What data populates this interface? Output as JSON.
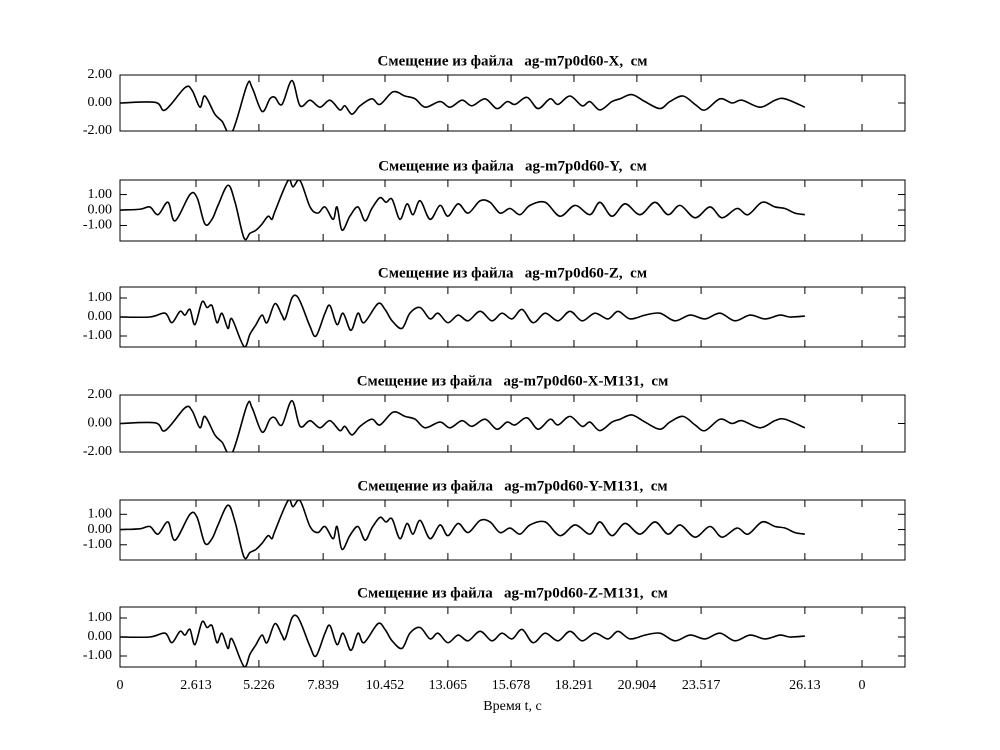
{
  "chart_data": [
    {
      "type": "line",
      "title": "Смещение из файла   ag-m7p0d60-X,  см",
      "color": "#000000",
      "xlim": [
        0,
        29.95
      ],
      "ylim": [
        -2,
        2
      ],
      "yticks": [
        {
          "value": -2,
          "label": "-2.00"
        },
        {
          "value": 0,
          "label": "0.00"
        },
        {
          "value": 2,
          "label": "2.00"
        }
      ],
      "x": [
        0,
        1.34,
        1.72,
        2.48,
        2.75,
        3.05,
        3.24,
        3.62,
        3.89,
        4.27,
        4.85,
        5.04,
        5.42,
        5.72,
        5.91,
        6.18,
        6.56,
        6.87,
        7.25,
        7.63,
        8.01,
        8.39,
        8.58,
        8.85,
        9.16,
        9.61,
        9.92,
        10.42,
        10.87,
        11.26,
        11.64,
        12.21,
        12.59,
        13.05,
        13.43,
        13.93,
        14.38,
        14.77,
        15.07,
        15.53,
        15.95,
        16.41,
        16.71,
        17.17,
        17.63,
        17.93,
        18.31,
        18.77,
        19.08,
        19.53,
        20.03,
        20.6,
        20.98,
        21.48,
        21.94,
        22.32,
        22.89,
        23.35,
        23.73,
        24.42,
        24.99,
        25.37,
        26.13
      ],
      "values": [
        0,
        0.05,
        -0.5,
        1.1,
        0.9,
        -0.3,
        0.5,
        -0.8,
        -1.3,
        -2.1,
        1.3,
        1.1,
        -0.6,
        0.3,
        0.4,
        -0.1,
        1.6,
        -0.2,
        0.2,
        -0.3,
        0.2,
        -0.5,
        -0.2,
        -0.8,
        -0.2,
        0.3,
        -0.1,
        0.8,
        0.5,
        0.3,
        -0.3,
        0.1,
        -0.3,
        0.2,
        -0.2,
        0.3,
        -0.4,
        0.1,
        -0.1,
        0.4,
        -0.4,
        0.3,
        -0.1,
        0.5,
        -0.2,
        0.1,
        -0.5,
        0.1,
        0.3,
        0.6,
        0.1,
        -0.4,
        0.1,
        0.5,
        -0.1,
        -0.5,
        0.3,
        0,
        0.2,
        -0.3,
        0.2,
        0.3,
        -0.3
      ]
    },
    {
      "type": "line",
      "title": "Смещение из файла   ag-m7p0d60-Y,  см",
      "color": "#000000",
      "xlim": [
        0,
        29.95
      ],
      "ylim": [
        -2,
        1.94
      ],
      "yticks": [
        {
          "value": -1,
          "label": "-1.00"
        },
        {
          "value": 0,
          "label": "0.00"
        },
        {
          "value": 1,
          "label": "1.00"
        }
      ],
      "x": [
        0,
        0.76,
        1.14,
        1.45,
        1.83,
        2.1,
        2.67,
        2.94,
        3.24,
        3.51,
        3.74,
        4.12,
        4.39,
        4.73,
        4.96,
        5.19,
        5.42,
        5.65,
        5.8,
        5.91,
        6.41,
        6.6,
        6.87,
        7.25,
        7.55,
        7.82,
        8.13,
        8.28,
        8.47,
        8.77,
        9.08,
        9.35,
        9.61,
        9.92,
        10.15,
        10.38,
        10.68,
        10.95,
        11.18,
        11.45,
        11.83,
        12.21,
        12.51,
        12.9,
        13.28,
        13.74,
        14.12,
        14.5,
        14.88,
        15.26,
        15.64,
        16.22,
        16.79,
        17.36,
        17.93,
        18.31,
        18.77,
        19.27,
        19.84,
        20.41,
        20.91,
        21.37,
        21.94,
        22.51,
        22.97,
        23.54,
        23.96,
        24.5,
        24.99,
        25.37,
        25.75,
        26.13
      ],
      "values": [
        0,
        0.05,
        0.2,
        -0.3,
        0.5,
        -0.7,
        1.0,
        0.8,
        -0.9,
        -0.6,
        0.3,
        1.6,
        0.5,
        -1.8,
        -1.5,
        -1.3,
        -0.9,
        -0.4,
        -0.6,
        -0.1,
        1.9,
        1.5,
        1.9,
        0.2,
        -0.2,
        0.2,
        -0.6,
        0.2,
        -1.3,
        -0.4,
        0.2,
        -0.7,
        0.1,
        0.8,
        0.5,
        0.7,
        -0.6,
        0.4,
        -0.3,
        0.6,
        -0.6,
        0.3,
        -0.4,
        0.4,
        -0.2,
        0.6,
        0.5,
        -0.2,
        0.1,
        -0.3,
        0.3,
        0.5,
        -0.4,
        0.3,
        -0.3,
        0.5,
        -0.4,
        0.4,
        -0.3,
        0.5,
        -0.3,
        0.3,
        -0.5,
        0.2,
        -0.5,
        0.1,
        -0.3,
        0.5,
        0.2,
        0.1,
        -0.2,
        -0.3
      ]
    },
    {
      "type": "line",
      "title": "Смещение из файла   ag-m7p0d60-Z,  см",
      "color": "#000000",
      "xlim": [
        0,
        29.95
      ],
      "ylim": [
        -1.58,
        1.58
      ],
      "yticks": [
        {
          "value": -1,
          "label": "-1.00"
        },
        {
          "value": 0,
          "label": "0.00"
        },
        {
          "value": 1,
          "label": "1.00"
        }
      ],
      "x": [
        0,
        1.14,
        1.72,
        1.98,
        2.29,
        2.48,
        2.67,
        2.86,
        3.13,
        3.32,
        3.51,
        3.7,
        3.89,
        4.12,
        4.27,
        4.73,
        4.96,
        5.19,
        5.42,
        5.61,
        5.91,
        6.18,
        6.3,
        6.56,
        6.75,
        6.94,
        7.25,
        7.48,
        7.82,
        8.01,
        8.28,
        8.51,
        8.81,
        9.08,
        9.31,
        9.84,
        10.11,
        10.38,
        10.76,
        11.06,
        11.45,
        11.83,
        12.13,
        12.51,
        12.9,
        13.28,
        13.74,
        14.19,
        14.57,
        14.96,
        15.34,
        15.76,
        16.22,
        16.71,
        17.17,
        17.63,
        18.12,
        18.62,
        19.0,
        19.46,
        20.03,
        20.6,
        21.17,
        21.75,
        22.32,
        22.89,
        23.46,
        24.04,
        24.61,
        25.18,
        25.56,
        26.13
      ],
      "values": [
        0,
        0,
        0.2,
        -0.3,
        0.3,
        0.1,
        0.4,
        -0.4,
        0.8,
        0.5,
        0.6,
        -0.3,
        0.2,
        -0.6,
        -0.1,
        -1.55,
        -0.9,
        -0.4,
        0.1,
        -0.3,
        0.7,
        0.1,
        -0.1,
        1.0,
        1.1,
        0.6,
        -0.5,
        -1.0,
        0.2,
        0.6,
        -0.4,
        0.2,
        -0.7,
        0.2,
        -0.3,
        0.7,
        0.4,
        -0.2,
        -0.6,
        0.2,
        0.5,
        -0.1,
        0.2,
        -0.3,
        0.1,
        -0.2,
        0.3,
        -0.2,
        0.2,
        -0.1,
        0.4,
        -0.3,
        0.2,
        -0.2,
        0.3,
        -0.2,
        0.2,
        -0.1,
        0.3,
        -0.1,
        0.1,
        0.2,
        -0.2,
        0.1,
        -0.1,
        0.2,
        -0.2,
        0.1,
        -0.1,
        0.1,
        0,
        0.05
      ]
    },
    {
      "type": "line",
      "title": "Смещение из файла   ag-m7p0d60-X-M131,  см",
      "color": "#000000",
      "xlim": [
        0,
        29.95
      ],
      "ylim": [
        -2,
        2
      ],
      "yticks": [
        {
          "value": -2,
          "label": "-2.00"
        },
        {
          "value": 0,
          "label": "0.00"
        },
        {
          "value": 2,
          "label": "2.00"
        }
      ],
      "x": [
        0,
        1.34,
        1.72,
        2.48,
        2.75,
        3.05,
        3.24,
        3.62,
        3.89,
        4.27,
        4.85,
        5.04,
        5.42,
        5.72,
        5.91,
        6.18,
        6.56,
        6.87,
        7.25,
        7.63,
        8.01,
        8.39,
        8.58,
        8.85,
        9.16,
        9.61,
        9.92,
        10.42,
        10.87,
        11.26,
        11.64,
        12.21,
        12.59,
        13.05,
        13.43,
        13.93,
        14.38,
        14.77,
        15.07,
        15.53,
        15.95,
        16.41,
        16.71,
        17.17,
        17.63,
        17.93,
        18.31,
        18.77,
        19.08,
        19.53,
        20.03,
        20.6,
        20.98,
        21.48,
        21.94,
        22.32,
        22.89,
        23.35,
        23.73,
        24.42,
        24.99,
        25.37,
        26.13
      ],
      "values": [
        0,
        0.05,
        -0.5,
        1.1,
        0.9,
        -0.3,
        0.5,
        -0.8,
        -1.3,
        -2.1,
        1.3,
        1.1,
        -0.6,
        0.3,
        0.4,
        -0.1,
        1.6,
        -0.2,
        0.2,
        -0.3,
        0.2,
        -0.5,
        -0.2,
        -0.8,
        -0.2,
        0.3,
        -0.1,
        0.8,
        0.5,
        0.3,
        -0.3,
        0.1,
        -0.3,
        0.2,
        -0.2,
        0.3,
        -0.4,
        0.1,
        -0.1,
        0.4,
        -0.4,
        0.3,
        -0.1,
        0.5,
        -0.2,
        0.1,
        -0.5,
        0.1,
        0.3,
        0.6,
        0.1,
        -0.4,
        0.1,
        0.5,
        -0.1,
        -0.5,
        0.3,
        0,
        0.2,
        -0.3,
        0.2,
        0.3,
        -0.3
      ]
    },
    {
      "type": "line",
      "title": "Смещение из файла   ag-m7p0d60-Y-M131,  см",
      "color": "#000000",
      "xlim": [
        0,
        29.95
      ],
      "ylim": [
        -2,
        1.94
      ],
      "yticks": [
        {
          "value": -1,
          "label": "-1.00"
        },
        {
          "value": 0,
          "label": "0.00"
        },
        {
          "value": 1,
          "label": "1.00"
        }
      ],
      "x": [
        0,
        0.76,
        1.14,
        1.45,
        1.83,
        2.1,
        2.67,
        2.94,
        3.24,
        3.51,
        3.74,
        4.12,
        4.39,
        4.73,
        4.96,
        5.19,
        5.42,
        5.65,
        5.8,
        5.91,
        6.41,
        6.6,
        6.87,
        7.25,
        7.55,
        7.82,
        8.13,
        8.28,
        8.47,
        8.77,
        9.08,
        9.35,
        9.61,
        9.92,
        10.15,
        10.38,
        10.68,
        10.95,
        11.18,
        11.45,
        11.83,
        12.21,
        12.51,
        12.9,
        13.28,
        13.74,
        14.12,
        14.5,
        14.88,
        15.26,
        15.64,
        16.22,
        16.79,
        17.36,
        17.93,
        18.31,
        18.77,
        19.27,
        19.84,
        20.41,
        20.91,
        21.37,
        21.94,
        22.51,
        22.97,
        23.54,
        23.96,
        24.5,
        24.99,
        25.37,
        25.75,
        26.13
      ],
      "values": [
        0,
        0.05,
        0.2,
        -0.3,
        0.5,
        -0.7,
        1.0,
        0.8,
        -0.9,
        -0.6,
        0.3,
        1.6,
        0.5,
        -1.8,
        -1.5,
        -1.3,
        -0.9,
        -0.4,
        -0.6,
        -0.1,
        1.9,
        1.5,
        1.9,
        0.2,
        -0.2,
        0.2,
        -0.6,
        0.2,
        -1.3,
        -0.4,
        0.2,
        -0.7,
        0.1,
        0.8,
        0.5,
        0.7,
        -0.6,
        0.4,
        -0.3,
        0.6,
        -0.6,
        0.3,
        -0.4,
        0.4,
        -0.2,
        0.6,
        0.5,
        -0.2,
        0.1,
        -0.3,
        0.3,
        0.5,
        -0.4,
        0.3,
        -0.3,
        0.5,
        -0.4,
        0.4,
        -0.3,
        0.5,
        -0.3,
        0.3,
        -0.5,
        0.2,
        -0.5,
        0.1,
        -0.3,
        0.5,
        0.2,
        0.1,
        -0.2,
        -0.3
      ]
    },
    {
      "type": "line",
      "title": "Смещение из файла   ag-m7p0d60-Z-M131,  см",
      "color": "#000000",
      "xlim": [
        0,
        29.95
      ],
      "ylim": [
        -1.58,
        1.58
      ],
      "yticks": [
        {
          "value": -1,
          "label": "-1.00"
        },
        {
          "value": 0,
          "label": "0.00"
        },
        {
          "value": 1,
          "label": "1.00"
        }
      ],
      "xlabel": "Время t, с",
      "xticks": [
        0,
        {
          "value": 2.9,
          "label": "2.613"
        },
        {
          "value": 5.3,
          "label": "5.226"
        },
        {
          "value": 7.75,
          "label": "7.839"
        },
        {
          "value": 10.11,
          "label": "10.452"
        },
        {
          "value": 12.51,
          "label": "13.065"
        },
        {
          "value": 14.92,
          "label": "15.678"
        },
        {
          "value": 17.32,
          "label": "18.291"
        },
        {
          "value": 19.72,
          "label": "20.904"
        },
        {
          "value": 22.17,
          "label": "23.517"
        },
        26.13,
        {
          "value": 28.31,
          "label": "0"
        }
      ],
      "x": [
        0,
        1.14,
        1.72,
        1.98,
        2.29,
        2.48,
        2.67,
        2.86,
        3.13,
        3.32,
        3.51,
        3.7,
        3.89,
        4.12,
        4.27,
        4.73,
        4.96,
        5.19,
        5.42,
        5.61,
        5.91,
        6.18,
        6.3,
        6.56,
        6.75,
        6.94,
        7.25,
        7.48,
        7.82,
        8.01,
        8.28,
        8.51,
        8.81,
        9.08,
        9.31,
        9.84,
        10.11,
        10.38,
        10.76,
        11.06,
        11.45,
        11.83,
        12.13,
        12.51,
        12.9,
        13.28,
        13.74,
        14.19,
        14.57,
        14.96,
        15.34,
        15.76,
        16.22,
        16.71,
        17.17,
        17.63,
        18.12,
        18.62,
        19.0,
        19.46,
        20.03,
        20.6,
        21.17,
        21.75,
        22.32,
        22.89,
        23.46,
        24.04,
        24.61,
        25.18,
        25.56,
        26.13
      ],
      "values": [
        0,
        0,
        0.2,
        -0.3,
        0.3,
        0.1,
        0.4,
        -0.4,
        0.8,
        0.5,
        0.6,
        -0.3,
        0.2,
        -0.6,
        -0.1,
        -1.55,
        -0.9,
        -0.4,
        0.1,
        -0.3,
        0.7,
        0.1,
        -0.1,
        1.0,
        1.1,
        0.6,
        -0.5,
        -1.0,
        0.2,
        0.6,
        -0.4,
        0.2,
        -0.7,
        0.2,
        -0.3,
        0.7,
        0.4,
        -0.2,
        -0.6,
        0.2,
        0.5,
        -0.1,
        0.2,
        -0.3,
        0.1,
        -0.2,
        0.3,
        -0.2,
        0.2,
        -0.1,
        0.4,
        -0.3,
        0.2,
        -0.2,
        0.3,
        -0.2,
        0.2,
        -0.1,
        0.3,
        -0.1,
        0.1,
        0.2,
        -0.2,
        0.1,
        -0.1,
        0.2,
        -0.2,
        0.1,
        -0.1,
        0.1,
        0,
        0.05
      ]
    }
  ]
}
